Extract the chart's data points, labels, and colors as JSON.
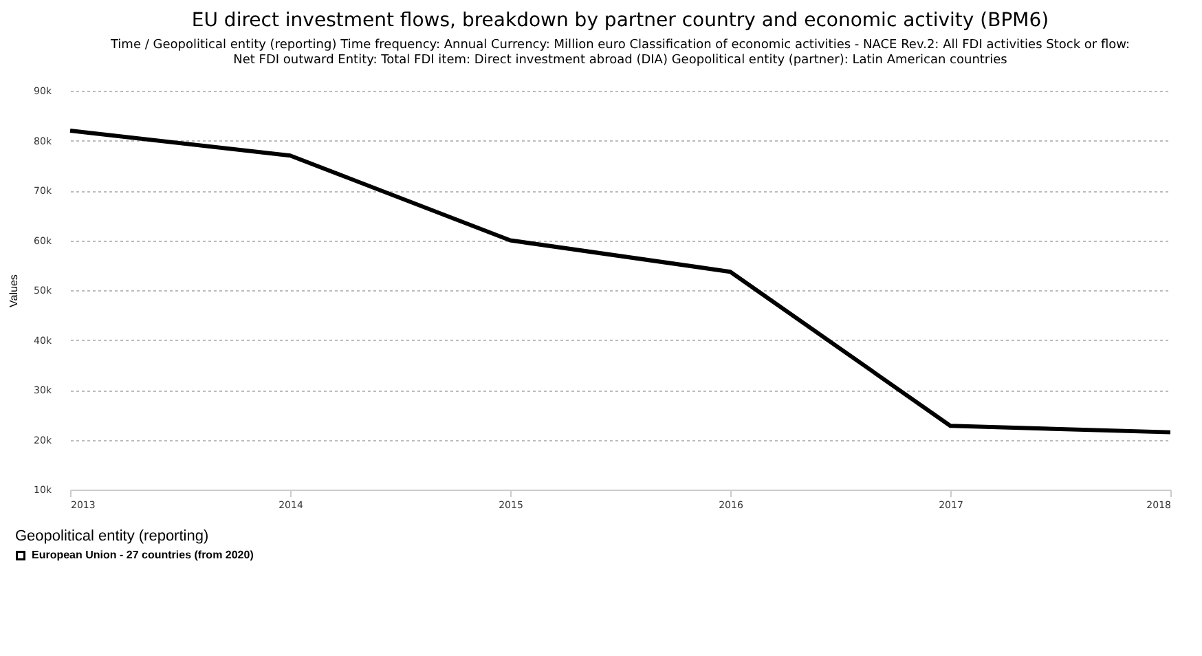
{
  "chart_data": {
    "type": "line",
    "title": "EU direct investment flows, breakdown by partner country and economic activity (BPM6)",
    "subtitle": "Time / Geopolitical entity (reporting)  Time frequency: Annual  Currency: Million euro  Classification of economic activities - NACE Rev.2: All FDI activities  Stock or flow: Net FDI outward  Entity: Total  FDI item: Direct investment abroad (DIA)  Geopolitical entity (partner): Latin American countries",
    "ylabel": "Values",
    "legend_title": "Geopolitical entity (reporting)",
    "x": [
      2013,
      2014,
      2015,
      2016,
      2017,
      2018
    ],
    "series": [
      {
        "name": "European Union - 27 countries (from 2020)",
        "color": "#000000",
        "values": [
          82000,
          77000,
          60000,
          53700,
          22800,
          21500
        ]
      }
    ],
    "xlim": [
      2013,
      2018
    ],
    "xticks": [
      2013,
      2014,
      2015,
      2016,
      2017,
      2018
    ],
    "ylim": [
      10000,
      90000
    ],
    "yticks": [
      {
        "value": 10000,
        "label": "10k"
      },
      {
        "value": 20000,
        "label": "20k"
      },
      {
        "value": 30000,
        "label": "30k"
      },
      {
        "value": 40000,
        "label": "40k"
      },
      {
        "value": 50000,
        "label": "50k"
      },
      {
        "value": 60000,
        "label": "60k"
      },
      {
        "value": 70000,
        "label": "70k"
      },
      {
        "value": 80000,
        "label": "80k"
      },
      {
        "value": 90000,
        "label": "90k"
      }
    ],
    "grid": "y",
    "legend": "bottom left",
    "marker": "none",
    "line_style": "solid"
  }
}
